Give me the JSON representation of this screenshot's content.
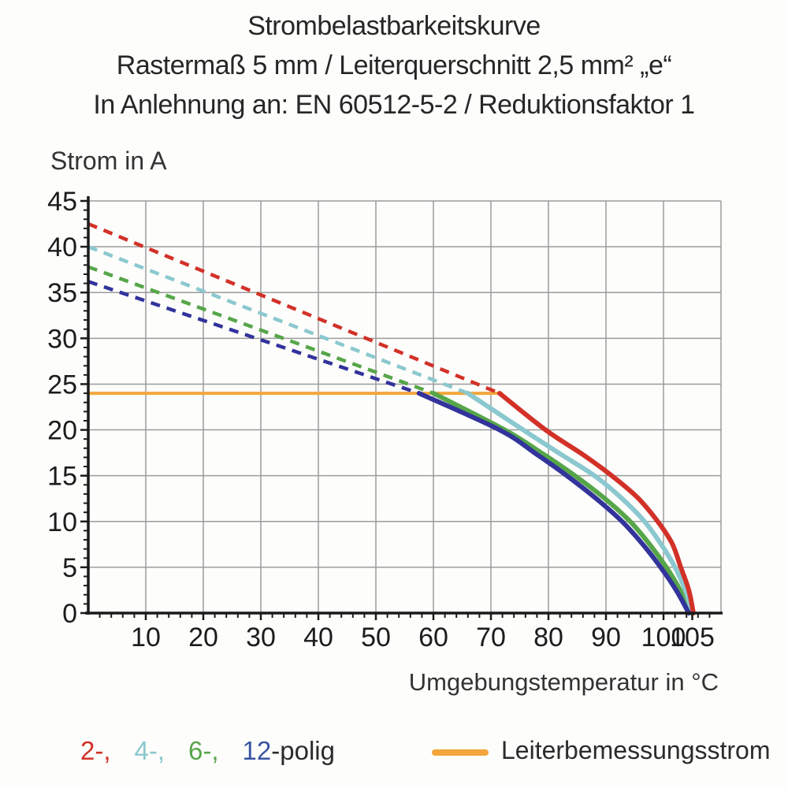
{
  "title": {
    "line1": "Strombelastbarkeitskurve",
    "line2": "Rastermaß 5 mm / Leiterquerschnitt 2,5 mm² „e“",
    "line3": "In Anlehnung an: EN 60512-5-2 / Reduktionsfaktor 1"
  },
  "chart_data": {
    "type": "line",
    "ylabel": "Strom in A",
    "xlabel": "Umgebungstemperatur in °C",
    "xlim": [
      0,
      110
    ],
    "ylim": [
      0,
      45
    ],
    "grid": true,
    "grid_color": "#9c9c9c",
    "axis_color": "#1a1a1a",
    "x_ticks": {
      "values": [
        10,
        20,
        30,
        40,
        50,
        60,
        70,
        80,
        90,
        100,
        105
      ],
      "labels": [
        "10",
        "20",
        "30",
        "40",
        "50",
        "60",
        "70",
        "80",
        "90",
        "100",
        "105"
      ],
      "minor_step": 2
    },
    "y_ticks": {
      "values": [
        0,
        5,
        10,
        15,
        20,
        25,
        30,
        35,
        40,
        45
      ],
      "labels": [
        "0",
        "5",
        "10",
        "15",
        "20",
        "25",
        "30",
        "35",
        "40",
        "45"
      ],
      "minor_step": 1
    },
    "x_grid_step": 10,
    "y_grid_step": 5,
    "rated_current_line": {
      "label": "Leiterbemessungsstrom",
      "color": "#f2a63c",
      "y": 24,
      "x_start": 0,
      "x_end": 72
    },
    "series": [
      {
        "name": "2-polig",
        "color": "#d23128",
        "dashed_segment": [
          [
            0,
            42.5
          ],
          [
            71.5,
            24
          ]
        ],
        "solid_segment": [
          [
            71.5,
            24
          ],
          [
            79.5,
            20
          ],
          [
            86,
            17.3
          ],
          [
            91,
            15
          ],
          [
            95.5,
            12.6
          ],
          [
            99,
            10
          ],
          [
            101.5,
            7.6
          ],
          [
            103,
            5
          ],
          [
            104.4,
            2.5
          ],
          [
            105.2,
            0
          ]
        ]
      },
      {
        "name": "4-polig",
        "color": "#8bc8cf",
        "dashed_segment": [
          [
            0,
            40
          ],
          [
            66,
            24
          ]
        ],
        "solid_segment": [
          [
            66,
            24
          ],
          [
            75.6,
            20
          ],
          [
            82,
            17.4
          ],
          [
            88,
            15
          ],
          [
            92.8,
            12.5
          ],
          [
            96.7,
            10
          ],
          [
            99.6,
            7.5
          ],
          [
            102,
            5
          ],
          [
            103.8,
            2.5
          ],
          [
            105,
            0
          ]
        ]
      },
      {
        "name": "6-polig",
        "color": "#56a649",
        "dashed_segment": [
          [
            0,
            37.8
          ],
          [
            60,
            24
          ]
        ],
        "solid_segment": [
          [
            60,
            24
          ],
          [
            72.4,
            20
          ],
          [
            79,
            17.4
          ],
          [
            84.6,
            15
          ],
          [
            89.8,
            12.5
          ],
          [
            94.2,
            10
          ],
          [
            97.6,
            7.5
          ],
          [
            100.5,
            5
          ],
          [
            102.9,
            2.5
          ],
          [
            104.7,
            0
          ]
        ]
      },
      {
        "name": "12-polig",
        "color": "#32339b",
        "dashed_segment": [
          [
            0,
            36.2
          ],
          [
            57.5,
            24
          ]
        ],
        "solid_segment": [
          [
            57.5,
            24
          ],
          [
            71.5,
            20
          ],
          [
            77.8,
            17.4
          ],
          [
            83.2,
            15
          ],
          [
            88.3,
            12.5
          ],
          [
            92.8,
            10
          ],
          [
            96.4,
            7.5
          ],
          [
            99.5,
            5
          ],
          [
            102.2,
            2.5
          ],
          [
            104.4,
            0
          ]
        ]
      }
    ]
  },
  "legend": {
    "pole_items": [
      {
        "text": "2-,",
        "color": "#d23128"
      },
      {
        "text": "4-,",
        "color": "#8bc8cf"
      },
      {
        "text": "6-,",
        "color": "#56a649"
      },
      {
        "text": "12",
        "color": "#3a55a4"
      },
      {
        "text": "-polig",
        "color": "#2b2b2b"
      }
    ],
    "rated_label": "Leiterbemessungsstrom",
    "rated_color": "#f2a63c"
  }
}
